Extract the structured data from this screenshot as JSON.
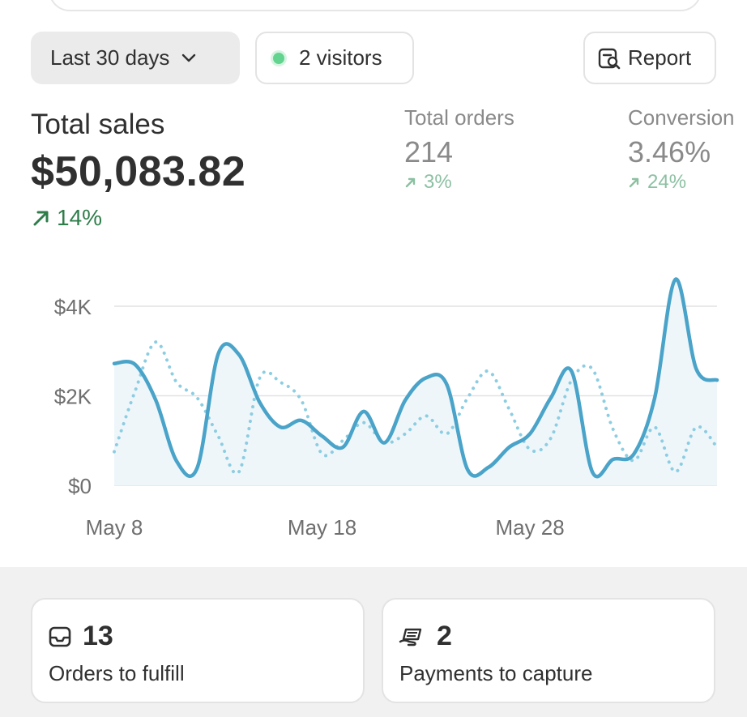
{
  "filters": {
    "date_range_label": "Last 30 days",
    "visitors_label": "2 visitors",
    "report_label": "Report"
  },
  "total_sales": {
    "title": "Total sales",
    "value": "$50,083.82",
    "delta": "14%"
  },
  "total_orders": {
    "title": "Total orders",
    "value": "214",
    "delta": "3%"
  },
  "conversion": {
    "title": "Conversion",
    "value": "3.46%",
    "delta": "24%"
  },
  "colors": {
    "series_current": "#4aa3c8",
    "series_previous": "#8ccde1",
    "positive_delta": "#2e7d4a",
    "muted_delta": "#8cc0a2",
    "visitor_dot": "#62d48f"
  },
  "icons": {
    "range_chevron": "chevron-down-icon",
    "live_dot": "live-dot-icon",
    "report": "report-search-icon",
    "orders": "inbox-icon",
    "payments": "hand-money-icon",
    "trend": "arrow-up-right-icon"
  },
  "chart_data": {
    "type": "line",
    "x_ticks": [
      "May 8",
      "May 18",
      "May 28"
    ],
    "y_ticks": [
      "$0",
      "$2K",
      "$4K"
    ],
    "ylim": [
      0,
      4000
    ],
    "grid": true,
    "x": [
      "May 8",
      "May 9",
      "May 10",
      "May 11",
      "May 12",
      "May 13",
      "May 14",
      "May 15",
      "May 16",
      "May 17",
      "May 18",
      "May 19",
      "May 20",
      "May 21",
      "May 22",
      "May 23",
      "May 24",
      "May 25",
      "May 26",
      "May 27",
      "May 28",
      "May 29",
      "May 30",
      "May 31",
      "Jun 1",
      "Jun 2",
      "Jun 3",
      "Jun 4",
      "Jun 5",
      "Jun 6"
    ],
    "series": [
      {
        "style": "solid",
        "values": [
          2720,
          2700,
          1900,
          540,
          400,
          2930,
          2920,
          1850,
          1300,
          1450,
          1100,
          850,
          1650,
          950,
          1900,
          2400,
          2250,
          350,
          400,
          850,
          1150,
          1950,
          2550,
          300,
          580,
          700,
          1950,
          4600,
          2600,
          2350
        ]
      },
      {
        "style": "dotted",
        "values": [
          750,
          2100,
          3200,
          2300,
          1950,
          1100,
          300,
          2400,
          2300,
          1900,
          700,
          1000,
          1400,
          950,
          1150,
          1550,
          1150,
          1950,
          2550,
          1700,
          800,
          1050,
          2350,
          2600,
          1250,
          550,
          1300,
          300,
          1300,
          850
        ]
      }
    ]
  },
  "tiles": [
    {
      "count": "13",
      "label": "Orders to fulfill"
    },
    {
      "count": "2",
      "label": "Payments to capture"
    }
  ]
}
